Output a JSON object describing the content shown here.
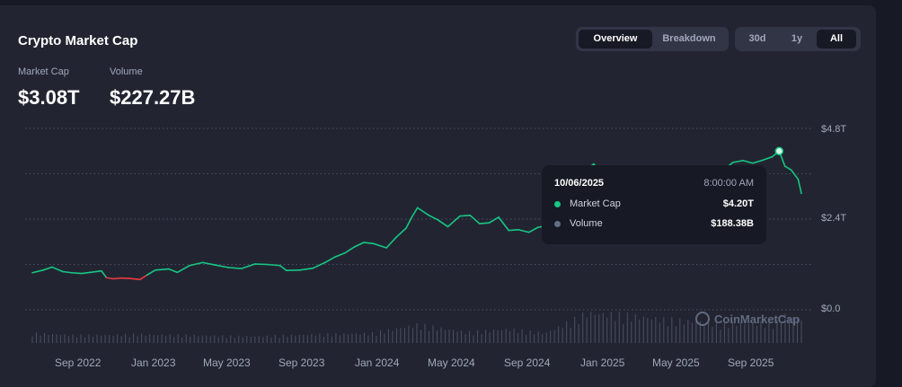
{
  "card": {
    "title": "Crypto Market Cap"
  },
  "view_tabs": [
    {
      "label": "Overview",
      "active": true
    },
    {
      "label": "Breakdown",
      "active": false
    }
  ],
  "range_tabs": [
    {
      "label": "30d",
      "active": false
    },
    {
      "label": "1y",
      "active": false
    },
    {
      "label": "All",
      "active": true
    }
  ],
  "stats": {
    "market_cap_label": "Market Cap",
    "market_cap_value": "$3.08T",
    "volume_label": "Volume",
    "volume_value": "$227.27B"
  },
  "tooltip": {
    "date": "10/06/2025",
    "time": "8:00:00 AM",
    "rows": [
      {
        "label": "Market Cap",
        "value": "$4.20T",
        "color": "#16c784"
      },
      {
        "label": "Volume",
        "value": "$188.38B",
        "color": "#616e85"
      }
    ]
  },
  "watermark": "CoinMarketCap",
  "colors": {
    "up": "#16c784",
    "down": "#ea3943",
    "volume": "#4a5064",
    "grid": "#4a5064",
    "background": "#222531"
  },
  "chart_data": {
    "type": "line",
    "y_unit": "USD trillions",
    "y_ticks": [
      "$4.8T",
      "$2.4T",
      "$0.0"
    ],
    "y_tick_values": [
      4.8,
      2.4,
      0.0
    ],
    "ylim": [
      0,
      4.8
    ],
    "x_ticks": [
      "Sep 2022",
      "Jan 2023",
      "May 2023",
      "Sep 2023",
      "Jan 2024",
      "May 2024",
      "Sep 2024",
      "Jan 2025",
      "May 2025",
      "Sep 2025"
    ],
    "x_start": "2022-07-15",
    "x_end": "2025-11-10",
    "grid": true,
    "highlight": {
      "x": "2025-10-06",
      "y": 4.2
    },
    "series": [
      {
        "name": "Market Cap",
        "x": [
          "2022-07-15",
          "2022-08-01",
          "2022-08-15",
          "2022-09-01",
          "2022-09-15",
          "2022-10-01",
          "2022-10-15",
          "2022-11-01",
          "2022-11-09",
          "2022-11-20",
          "2022-12-01",
          "2022-12-15",
          "2023-01-01",
          "2023-01-12",
          "2023-01-25",
          "2023-02-15",
          "2023-03-01",
          "2023-03-20",
          "2023-04-10",
          "2023-05-01",
          "2023-05-20",
          "2023-06-10",
          "2023-07-01",
          "2023-07-20",
          "2023-08-10",
          "2023-08-20",
          "2023-09-10",
          "2023-10-01",
          "2023-10-20",
          "2023-11-05",
          "2023-11-20",
          "2023-12-05",
          "2023-12-20",
          "2024-01-05",
          "2024-01-25",
          "2024-02-10",
          "2024-02-25",
          "2024-03-05",
          "2024-03-14",
          "2024-04-01",
          "2024-04-15",
          "2024-05-01",
          "2024-05-20",
          "2024-06-05",
          "2024-06-20",
          "2024-07-05",
          "2024-07-20",
          "2024-08-05",
          "2024-08-20",
          "2024-09-06",
          "2024-09-20",
          "2024-10-05",
          "2024-10-25",
          "2024-11-10",
          "2024-11-25",
          "2024-12-05",
          "2024-12-17",
          "2025-01-05",
          "2025-01-20",
          "2025-02-05",
          "2025-02-25",
          "2025-03-10",
          "2025-03-25",
          "2025-04-08",
          "2025-04-25",
          "2025-05-10",
          "2025-05-25",
          "2025-06-10",
          "2025-06-25",
          "2025-07-10",
          "2025-07-25",
          "2025-08-10",
          "2025-08-25",
          "2025-09-10",
          "2025-09-25",
          "2025-10-06",
          "2025-10-15",
          "2025-10-25",
          "2025-11-05",
          "2025-11-10"
        ],
        "values": [
          0.98,
          1.05,
          1.13,
          1.01,
          0.98,
          0.96,
          0.99,
          1.03,
          0.85,
          0.82,
          0.84,
          0.83,
          0.8,
          0.92,
          1.05,
          1.08,
          0.99,
          1.17,
          1.25,
          1.18,
          1.12,
          1.09,
          1.21,
          1.2,
          1.17,
          1.04,
          1.05,
          1.1,
          1.25,
          1.4,
          1.5,
          1.66,
          1.78,
          1.75,
          1.64,
          1.93,
          2.16,
          2.45,
          2.7,
          2.5,
          2.38,
          2.2,
          2.48,
          2.5,
          2.28,
          2.3,
          2.45,
          2.1,
          2.12,
          2.05,
          2.18,
          2.23,
          2.4,
          2.95,
          3.3,
          3.68,
          3.86,
          3.5,
          3.6,
          3.3,
          3.05,
          2.96,
          2.88,
          2.6,
          2.9,
          3.3,
          3.5,
          3.3,
          3.35,
          3.7,
          3.9,
          3.95,
          3.88,
          3.96,
          4.05,
          4.2,
          3.8,
          3.7,
          3.45,
          3.08
        ],
        "down_range": [
          "2022-11-09",
          "2023-01-12"
        ]
      }
    ],
    "volume_series": {
      "name": "Volume",
      "x": [
        "2022-07-15",
        "2022-10-01",
        "2023-01-01",
        "2023-04-01",
        "2023-07-01",
        "2023-10-01",
        "2024-01-01",
        "2024-03-14",
        "2024-06-01",
        "2024-08-05",
        "2024-10-01",
        "2024-11-25",
        "2024-12-05",
        "2025-02-03",
        "2025-04-08",
        "2025-07-15",
        "2025-10-06",
        "2025-10-11",
        "2025-11-10"
      ],
      "values": [
        0.09,
        0.07,
        0.08,
        0.07,
        0.06,
        0.08,
        0.09,
        0.17,
        0.1,
        0.13,
        0.09,
        0.24,
        0.28,
        0.26,
        0.22,
        0.18,
        0.19,
        0.26,
        0.23
      ]
    }
  }
}
